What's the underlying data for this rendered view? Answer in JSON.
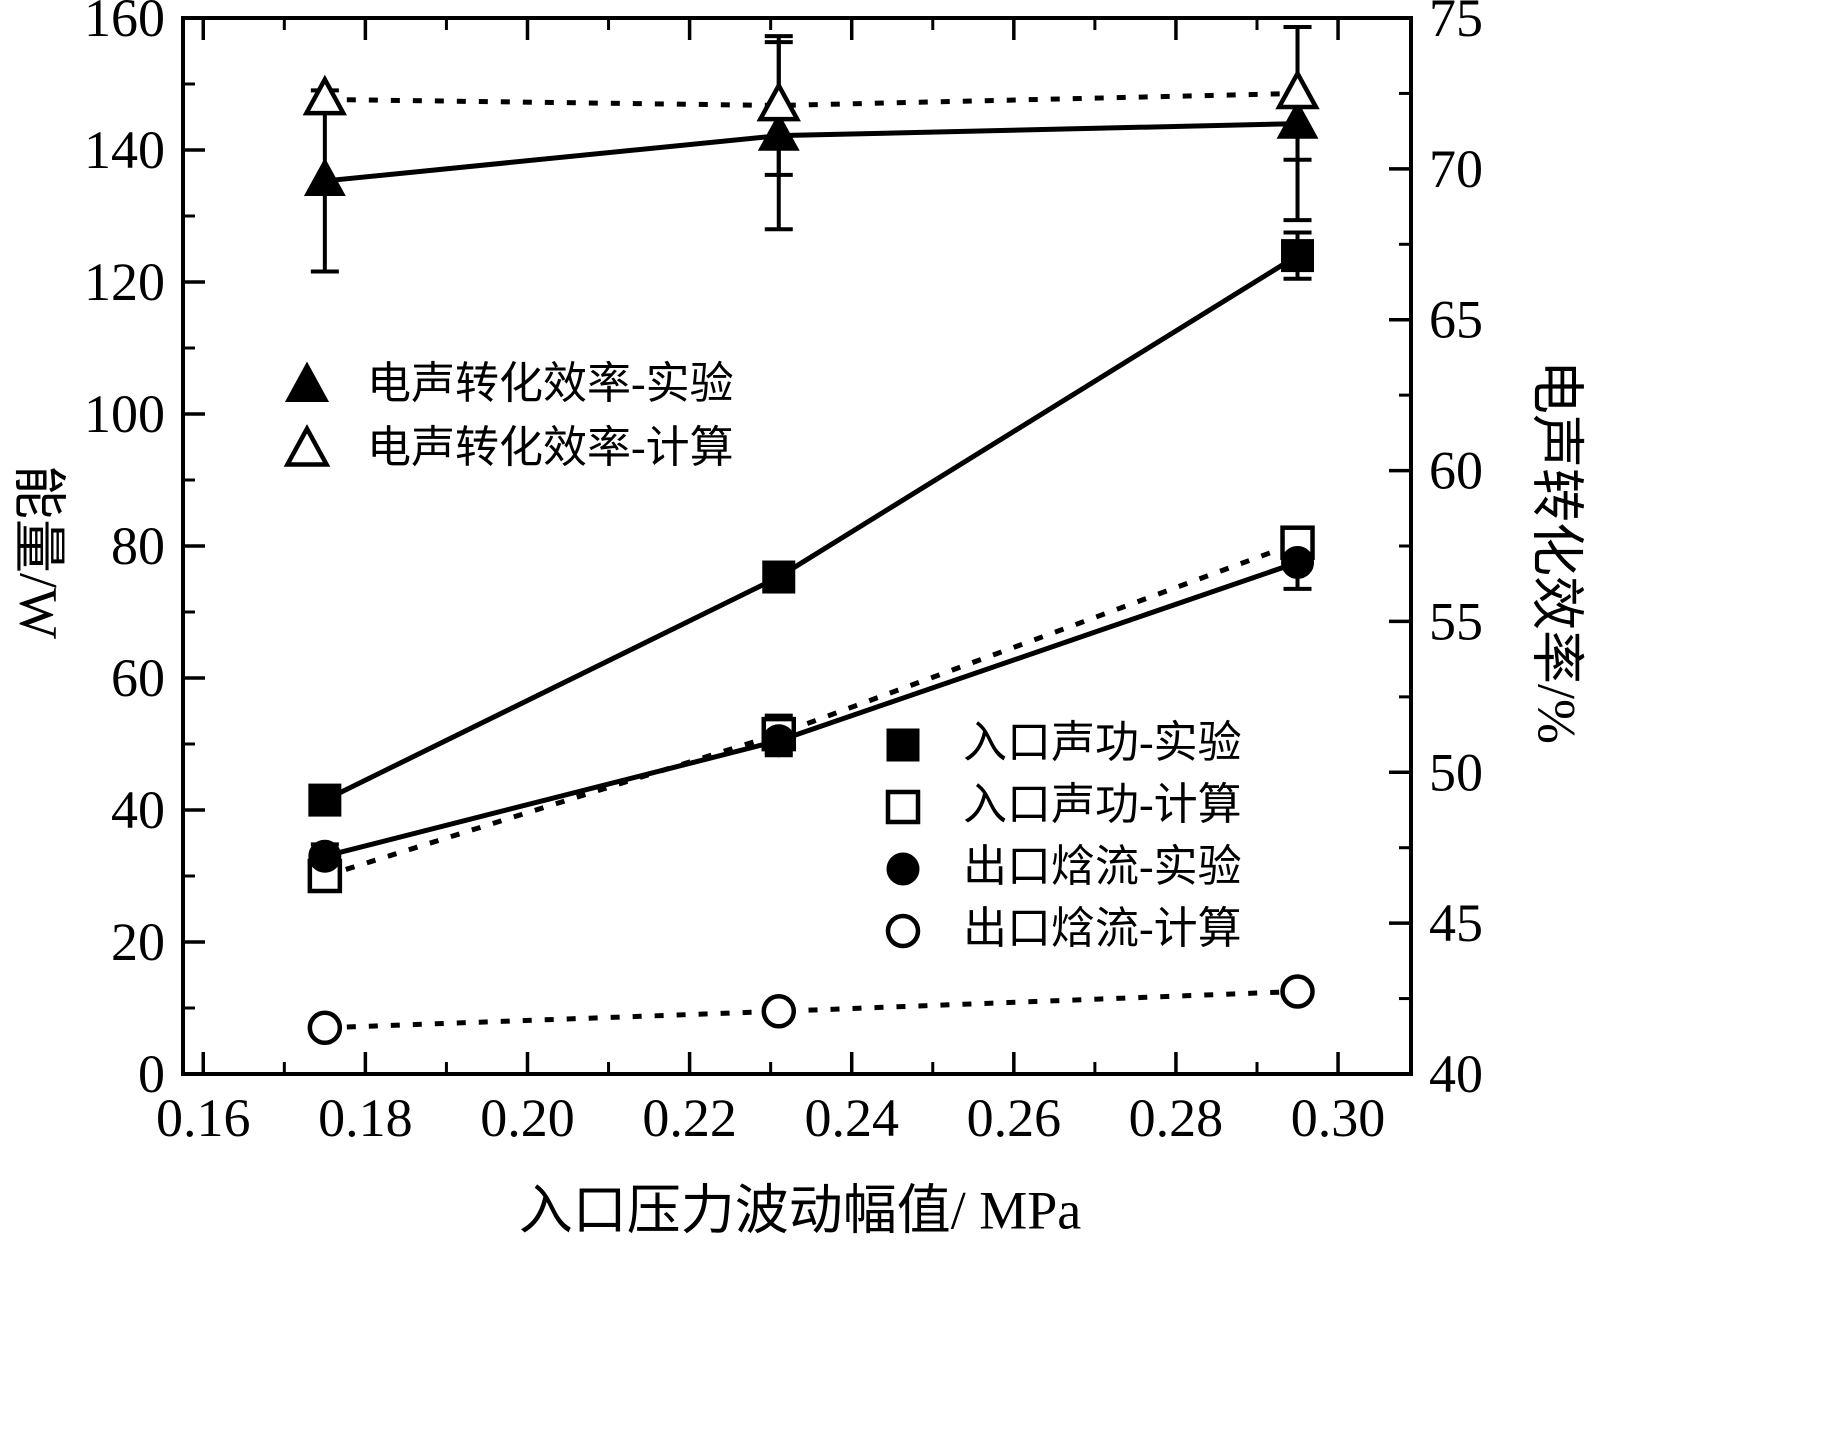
{
  "figure": {
    "background": "#ffffff",
    "ink_color": "#000000"
  },
  "chart_data": {
    "type": "line",
    "title": "",
    "xlabel": "入口压力波动幅值/ MPa",
    "ylabel_left": "能量/W",
    "ylabel_right": "电声转化效率/%",
    "xlim": [
      0.1575,
      0.309
    ],
    "ylim_left": [
      0,
      160
    ],
    "ylim_right": [
      40,
      75
    ],
    "x_ticks": [
      0.16,
      0.18,
      0.2,
      0.22,
      0.24,
      0.26,
      0.28,
      0.3
    ],
    "x_minor_ticks": [
      0.17,
      0.19,
      0.21,
      0.23,
      0.25,
      0.27,
      0.29
    ],
    "y_ticks_left": [
      0,
      20,
      40,
      60,
      80,
      100,
      120,
      140,
      160
    ],
    "y_minor_ticks_left": [
      10,
      30,
      50,
      70,
      90,
      110,
      130,
      150
    ],
    "y_ticks_right": [
      40,
      45,
      50,
      55,
      60,
      65,
      70,
      75
    ],
    "y_minor_ticks_right": [
      42.5,
      47.5,
      52.5,
      57.5,
      62.5,
      67.5,
      72.5
    ],
    "grid": false,
    "legend_position_top": "upper-left-inside",
    "legend_position_bottom": "lower-right-inside",
    "x": [
      0.175,
      0.231,
      0.295
    ],
    "series": [
      {
        "id": "eff-exp",
        "name": "电声转化效率-实验",
        "axis": "right",
        "marker": "triangle-filled",
        "line": "solid",
        "values": [
          69.6,
          71.1,
          71.5
        ],
        "error": [
          3.0,
          3.1,
          3.2
        ]
      },
      {
        "id": "eff-calc",
        "name": "电声转化效率-计算",
        "axis": "right",
        "marker": "triangle-open",
        "line": "dashed",
        "values": [
          72.3,
          72.1,
          72.5
        ],
        "error": [
          0,
          2.3,
          2.2
        ]
      },
      {
        "id": "pin-exp",
        "name": "入口声功-实验",
        "axis": "left",
        "marker": "square-filled",
        "line": "solid",
        "values": [
          41.5,
          75.3,
          124
        ],
        "error": [
          1.8,
          1.8,
          3.5
        ]
      },
      {
        "id": "pin-calc",
        "name": "入口声功-计算",
        "axis": "left",
        "marker": "square-open",
        "line": "dashed",
        "values": [
          30,
          51.5,
          80.5
        ],
        "error": [
          2.2,
          2.8,
          2.0
        ]
      },
      {
        "id": "hout-exp",
        "name": "出口焓流-实验",
        "axis": "left",
        "marker": "circle-filled",
        "line": "solid",
        "values": [
          33,
          50.5,
          77.5
        ],
        "error": [
          1.8,
          2.2,
          4.0
        ]
      },
      {
        "id": "hout-calc",
        "name": "出口焓流-计算",
        "axis": "left",
        "marker": "circle-open",
        "line": "dashed",
        "values": [
          7,
          9.5,
          12.5
        ],
        "error": [
          0,
          0,
          0
        ]
      }
    ]
  }
}
